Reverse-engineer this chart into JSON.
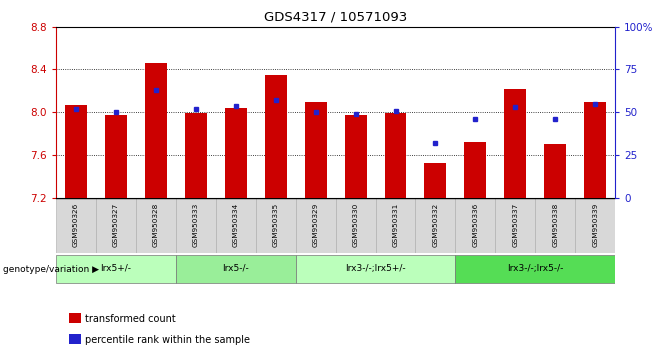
{
  "title": "GDS4317 / 10571093",
  "samples": [
    "GSM950326",
    "GSM950327",
    "GSM950328",
    "GSM950333",
    "GSM950334",
    "GSM950335",
    "GSM950329",
    "GSM950330",
    "GSM950331",
    "GSM950332",
    "GSM950336",
    "GSM950337",
    "GSM950338",
    "GSM950339"
  ],
  "red_values": [
    8.07,
    7.98,
    8.46,
    7.99,
    8.04,
    8.35,
    8.1,
    7.98,
    7.99,
    7.53,
    7.72,
    8.22,
    7.71,
    8.1
  ],
  "blue_values": [
    52,
    50,
    63,
    52,
    54,
    57,
    50,
    49,
    51,
    32,
    46,
    53,
    46,
    55
  ],
  "ylim_left": [
    7.2,
    8.8
  ],
  "ylim_right": [
    0,
    100
  ],
  "yticks_left": [
    7.2,
    7.6,
    8.0,
    8.4,
    8.8
  ],
  "yticks_right": [
    0,
    25,
    50,
    75,
    100
  ],
  "bar_color": "#cc0000",
  "dot_color": "#2222cc",
  "bar_bottom": 7.2,
  "groups": [
    {
      "label": "lrx5+/-",
      "start": 0,
      "end": 3,
      "color": "#bbffbb"
    },
    {
      "label": "lrx5-/-",
      "start": 3,
      "end": 6,
      "color": "#99ee99"
    },
    {
      "label": "lrx3-/-;lrx5+/-",
      "start": 6,
      "end": 10,
      "color": "#bbffbb"
    },
    {
      "label": "lrx3-/-;lrx5-/-",
      "start": 10,
      "end": 14,
      "color": "#55dd55"
    }
  ],
  "xlabel_bottom": "genotype/variation",
  "legend_red": "transformed count",
  "legend_blue": "percentile rank within the sample",
  "bg_color": "#ffffff",
  "axis_color_left": "#cc0000",
  "axis_color_right": "#2222cc",
  "label_bg": "#d8d8d8"
}
